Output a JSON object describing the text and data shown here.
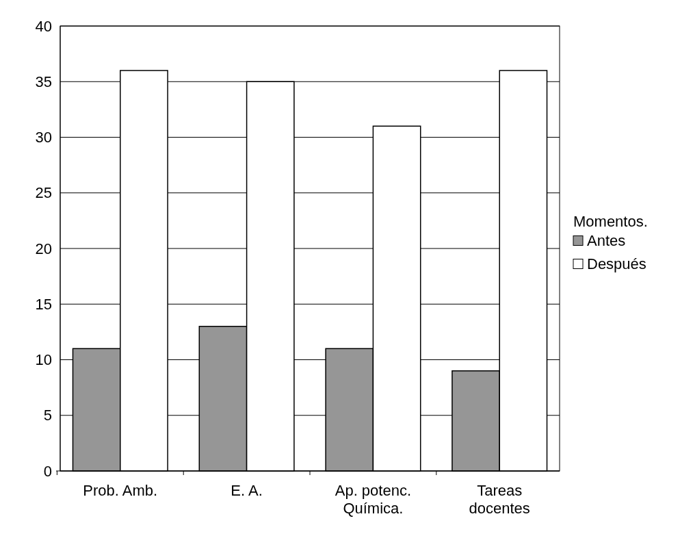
{
  "chart_data": {
    "type": "bar",
    "categories": [
      "Prob. Amb.",
      "E. A.",
      "Ap. potenc. Química.",
      "Tareas docentes"
    ],
    "series": [
      {
        "name": "Antes",
        "color": "#969696",
        "values": [
          11,
          13,
          11,
          9
        ]
      },
      {
        "name": "Después",
        "color": "#ffffff",
        "values": [
          36,
          35,
          31,
          36
        ]
      }
    ],
    "ylim": [
      0,
      40
    ],
    "yticks": [
      0,
      5,
      10,
      15,
      20,
      25,
      30,
      35,
      40
    ],
    "grid": "y",
    "legend": "right",
    "legend_title": "Momentos."
  }
}
